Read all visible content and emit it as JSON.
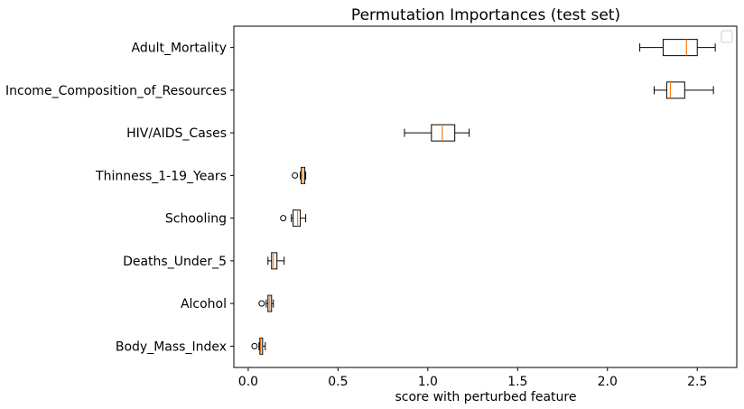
{
  "chart_data": {
    "type": "boxplot",
    "orientation": "horizontal",
    "title": "Permutation Importances (test set)",
    "xlabel": "score with perturbed feature",
    "ylabel": "",
    "xlim": [
      -0.08,
      2.72
    ],
    "xticks": [
      0.0,
      0.5,
      1.0,
      1.5,
      2.0,
      2.5
    ],
    "xtick_labels": [
      "0.0",
      "0.5",
      "1.0",
      "1.5",
      "2.0",
      "2.5"
    ],
    "grid": false,
    "legend": "top-right (empty)",
    "colors": {
      "box": "#000000",
      "median": "#ff7f0e",
      "whisker": "#000000"
    },
    "categories": [
      "Body_Mass_Index",
      "Alcohol",
      "Deaths_Under_5",
      "Schooling",
      "Thinness_1-19_Years",
      "HIV/AIDS_Cases",
      "Income_Composition_of_Resources",
      "Adult_Mortality"
    ],
    "boxes": [
      {
        "whisker_low": 0.06,
        "q1": 0.065,
        "median": 0.07,
        "q3": 0.08,
        "whisker_high": 0.095,
        "fliers": [
          0.035
        ]
      },
      {
        "whisker_low": 0.1,
        "q1": 0.11,
        "median": 0.12,
        "q3": 0.13,
        "whisker_high": 0.14,
        "fliers": [
          0.075
        ]
      },
      {
        "whisker_low": 0.11,
        "q1": 0.13,
        "median": 0.14,
        "q3": 0.16,
        "whisker_high": 0.2,
        "fliers": []
      },
      {
        "whisker_low": 0.24,
        "q1": 0.25,
        "median": 0.275,
        "q3": 0.29,
        "whisker_high": 0.32,
        "fliers": [
          0.195
        ]
      },
      {
        "whisker_low": 0.29,
        "q1": 0.295,
        "median": 0.305,
        "q3": 0.315,
        "whisker_high": 0.32,
        "fliers": [
          0.26
        ]
      },
      {
        "whisker_low": 0.87,
        "q1": 1.02,
        "median": 1.08,
        "q3": 1.15,
        "whisker_high": 1.23,
        "fliers": []
      },
      {
        "whisker_low": 2.26,
        "q1": 2.33,
        "median": 2.35,
        "q3": 2.43,
        "whisker_high": 2.59,
        "fliers": []
      },
      {
        "whisker_low": 2.18,
        "q1": 2.31,
        "median": 2.44,
        "q3": 2.5,
        "whisker_high": 2.6,
        "fliers": []
      }
    ]
  }
}
